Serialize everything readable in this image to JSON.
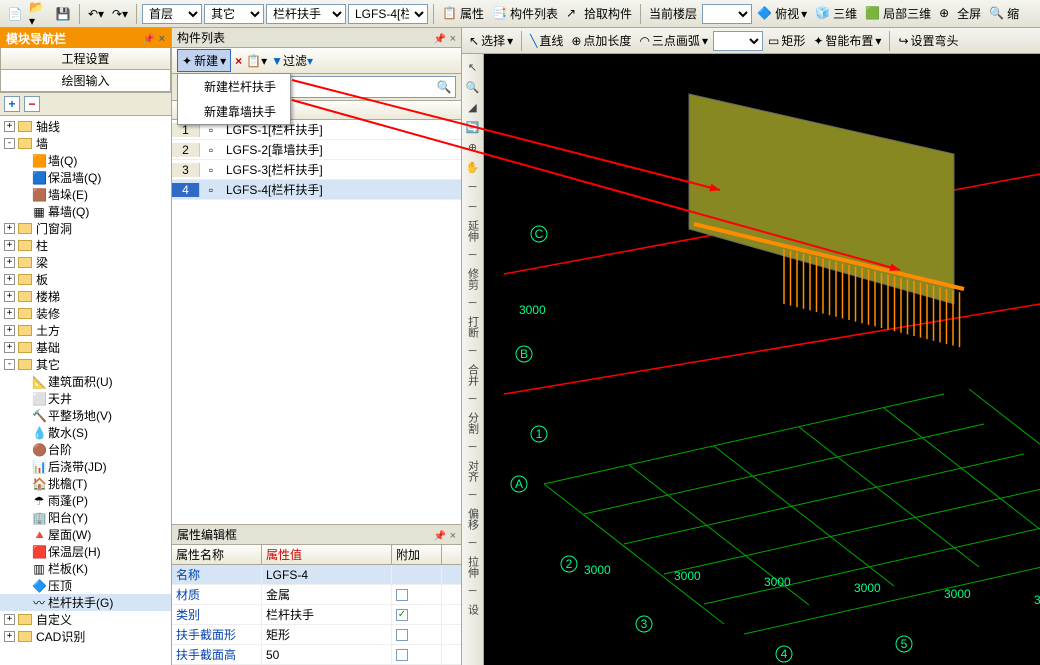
{
  "topbar": {
    "combos": {
      "floor": "首层",
      "category": "其它",
      "sub": "栏杆扶手",
      "item": "LGFS-4[栏"
    },
    "btns": {
      "props": "属性",
      "list": "构件列表",
      "pick": "拾取构件"
    },
    "current_floor_label": "当前楼层",
    "view_btns": {
      "perspective": "俯视",
      "threeD": "三维",
      "local3d": "局部三维",
      "fullscreen": "全屏",
      "zoom": "缩"
    }
  },
  "topbar2": {
    "select": "选择",
    "line": "直线",
    "addlen": "点加长度",
    "arc3": "三点画弧",
    "rect": "矩形",
    "smart": "智能布置",
    "bend": "设置弯头"
  },
  "nav": {
    "title": "模块导航栏",
    "tab1": "工程设置",
    "tab2": "绘图输入",
    "plus": "+",
    "minus": "−",
    "tree": [
      {
        "exp": "+",
        "ico": "f",
        "lbl": "轴线",
        "lvl": 0
      },
      {
        "exp": "-",
        "ico": "f",
        "lbl": "墙",
        "lvl": 0
      },
      {
        "exp": "",
        "ico": "i1",
        "lbl": "墙(Q)",
        "lvl": 1
      },
      {
        "exp": "",
        "ico": "i2",
        "lbl": "保温墙(Q)",
        "lvl": 1
      },
      {
        "exp": "",
        "ico": "i3",
        "lbl": "墙垛(E)",
        "lvl": 1
      },
      {
        "exp": "",
        "ico": "i4",
        "lbl": "幕墙(Q)",
        "lvl": 1
      },
      {
        "exp": "+",
        "ico": "f",
        "lbl": "门窗洞",
        "lvl": 0
      },
      {
        "exp": "+",
        "ico": "f",
        "lbl": "柱",
        "lvl": 0
      },
      {
        "exp": "+",
        "ico": "f",
        "lbl": "梁",
        "lvl": 0
      },
      {
        "exp": "+",
        "ico": "f",
        "lbl": "板",
        "lvl": 0
      },
      {
        "exp": "+",
        "ico": "f",
        "lbl": "楼梯",
        "lvl": 0
      },
      {
        "exp": "+",
        "ico": "f",
        "lbl": "装修",
        "lvl": 0
      },
      {
        "exp": "+",
        "ico": "f",
        "lbl": "土方",
        "lvl": 0
      },
      {
        "exp": "+",
        "ico": "f",
        "lbl": "基础",
        "lvl": 0
      },
      {
        "exp": "-",
        "ico": "f",
        "lbl": "其它",
        "lvl": 0
      },
      {
        "exp": "",
        "ico": "i5",
        "lbl": "建筑面积(U)",
        "lvl": 1
      },
      {
        "exp": "",
        "ico": "i6",
        "lbl": "天井",
        "lvl": 1
      },
      {
        "exp": "",
        "ico": "i7",
        "lbl": "平整场地(V)",
        "lvl": 1
      },
      {
        "exp": "",
        "ico": "i8",
        "lbl": "散水(S)",
        "lvl": 1
      },
      {
        "exp": "",
        "ico": "i9",
        "lbl": "台阶",
        "lvl": 1
      },
      {
        "exp": "",
        "ico": "i10",
        "lbl": "后浇带(JD)",
        "lvl": 1
      },
      {
        "exp": "",
        "ico": "i11",
        "lbl": "挑檐(T)",
        "lvl": 1
      },
      {
        "exp": "",
        "ico": "i12",
        "lbl": "雨蓬(P)",
        "lvl": 1
      },
      {
        "exp": "",
        "ico": "i13",
        "lbl": "阳台(Y)",
        "lvl": 1
      },
      {
        "exp": "",
        "ico": "i14",
        "lbl": "屋面(W)",
        "lvl": 1
      },
      {
        "exp": "",
        "ico": "i15",
        "lbl": "保温层(H)",
        "lvl": 1
      },
      {
        "exp": "",
        "ico": "i16",
        "lbl": "栏板(K)",
        "lvl": 1
      },
      {
        "exp": "",
        "ico": "i17",
        "lbl": "压顶",
        "lvl": 1
      },
      {
        "exp": "",
        "ico": "i18",
        "lbl": "栏杆扶手(G)",
        "lvl": 1,
        "sel": true
      },
      {
        "exp": "+",
        "ico": "f",
        "lbl": "自定义",
        "lvl": 0
      },
      {
        "exp": "+",
        "ico": "f",
        "lbl": "CAD识别",
        "lvl": 0
      }
    ]
  },
  "mid": {
    "title": "构件列表",
    "new": "新建",
    "filter": "过滤",
    "menu": {
      "m1": "新建栏杆扶手",
      "m2": "新建靠墙扶手"
    },
    "col_header": "构件名称",
    "rows": [
      {
        "n": "1",
        "name": "LGFS-1[栏杆扶手]"
      },
      {
        "n": "2",
        "name": "LGFS-2[靠墙扶手]"
      },
      {
        "n": "3",
        "name": "LGFS-3[栏杆扶手]"
      },
      {
        "n": "4",
        "name": "LGFS-4[栏杆扶手]",
        "sel": true
      }
    ]
  },
  "props": {
    "title": "属性编辑框",
    "head": {
      "c1": "属性名称",
      "c2": "属性值",
      "c3": "附加"
    },
    "rows": [
      {
        "k": "名称",
        "v": "LGFS-4",
        "chk": ""
      },
      {
        "k": "材质",
        "v": "金属",
        "chk": "☐"
      },
      {
        "k": "类别",
        "v": "栏杆扶手",
        "chk": "☑"
      },
      {
        "k": "扶手截面形",
        "v": "矩形",
        "chk": "☐"
      },
      {
        "k": "扶手截面高",
        "v": "50",
        "chk": "☐"
      }
    ]
  },
  "vtool": {
    "items": [
      "延伸",
      "修剪",
      "打断",
      "合并",
      "分割",
      "对齐",
      "偏移",
      "拉伸",
      "设"
    ]
  },
  "scene": {
    "bg": "#000000",
    "grid_color": "#00aa00",
    "axis_red": "#ff0000",
    "wall_color": "#888822",
    "rail_color": "#ff8c00",
    "label_color": "#00ff88",
    "dim_labels": [
      "3000",
      "3000",
      "3000",
      "3000",
      "3000",
      "3000"
    ],
    "axis_labels_v": [
      "C",
      "B",
      "1",
      "A",
      "2",
      "3",
      "4",
      "5"
    ],
    "dim_v": "3000"
  },
  "arrows": {
    "color": "#ff0000"
  }
}
